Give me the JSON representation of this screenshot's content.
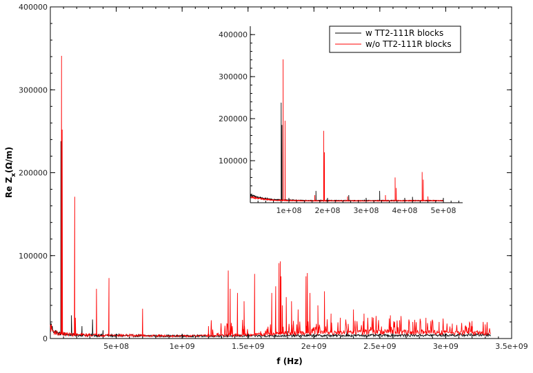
{
  "chart_data": [
    {
      "name": "main-plot",
      "type": "line",
      "xlabel": "f (Hz)",
      "ylabel_parts": [
        "Re Z",
        "x",
        "(Ω/m)"
      ],
      "xlim": [
        0,
        3500000000
      ],
      "ylim": [
        0,
        400000
      ],
      "x_ticks": [
        500000000,
        1000000000,
        1500000000,
        2000000000,
        2500000000,
        3000000000,
        3500000000
      ],
      "x_tick_labels": [
        "5e+08",
        "1e+09",
        "1.5e+09",
        "2e+09",
        "2.5e+09",
        "3e+09",
        "3.5e+09"
      ],
      "y_ticks": [
        0,
        100000,
        200000,
        300000,
        400000
      ],
      "y_tick_labels": [
        "0",
        "100000",
        "200000",
        "300000",
        "400000"
      ],
      "series": [
        {
          "name": "w TT2-111R blocks",
          "color": "#000000",
          "baseline": [
            [
              0,
              18000
            ],
            [
              20000000,
              10000
            ],
            [
              60000000,
              6000
            ],
            [
              200000000,
              4000
            ],
            [
              500000000,
              3500
            ],
            [
              1000000000,
              3000
            ],
            [
              2000000000,
              3500
            ],
            [
              3000000000,
              4000
            ],
            [
              3330000000,
              4500
            ]
          ],
          "peaks": [
            [
              80000000,
              238000
            ],
            [
              82000000,
              106000
            ],
            [
              160000000,
              28000
            ],
            [
              240000000,
              15000
            ],
            [
              320000000,
              23000
            ],
            [
              400000000,
              10000
            ],
            [
              520000000,
              6000
            ],
            [
              700000000,
              7000
            ],
            [
              1800000000,
              9000
            ],
            [
              2250000000,
              10000
            ],
            [
              2600000000,
              7000
            ]
          ]
        },
        {
          "name": "w/o TT2-111R blocks",
          "color": "#ff0000",
          "baseline": [
            [
              0,
              14000
            ],
            [
              20000000,
              9000
            ],
            [
              60000000,
              6000
            ],
            [
              200000000,
              4500
            ],
            [
              500000000,
              4000
            ],
            [
              1000000000,
              3000
            ],
            [
              1300000000,
              3500
            ],
            [
              1600000000,
              5000
            ],
            [
              2000000000,
              7000
            ],
            [
              2500000000,
              8000
            ],
            [
              3000000000,
              7000
            ],
            [
              3330000000,
              6000
            ]
          ],
          "peaks": [
            [
              85000000,
              341000
            ],
            [
              90000000,
              252000
            ],
            [
              185000000,
              171000
            ],
            [
              190000000,
              25000
            ],
            [
              350000000,
              60000
            ],
            [
              445000000,
              73000
            ],
            [
              700000000,
              36000
            ],
            [
              1200000000,
              15000
            ],
            [
              1350000000,
              82000
            ],
            [
              1365000000,
              60000
            ],
            [
              1420000000,
              55000
            ],
            [
              1470000000,
              45000
            ],
            [
              1550000000,
              78000
            ],
            [
              1680000000,
              55000
            ],
            [
              1710000000,
              63000
            ],
            [
              1735000000,
              91000
            ],
            [
              1745000000,
              93000
            ],
            [
              1750000000,
              75000
            ],
            [
              1760000000,
              40000
            ],
            [
              1790000000,
              50000
            ],
            [
              1830000000,
              45000
            ],
            [
              1880000000,
              35000
            ],
            [
              1940000000,
              75000
            ],
            [
              1950000000,
              79000
            ],
            [
              1970000000,
              55000
            ],
            [
              2030000000,
              40000
            ],
            [
              2080000000,
              57000
            ],
            [
              2130000000,
              30000
            ],
            [
              2200000000,
              25000
            ],
            [
              2300000000,
              35000
            ],
            [
              2380000000,
              30000
            ],
            [
              2450000000,
              25000
            ],
            [
              2580000000,
              28000
            ],
            [
              2650000000,
              22000
            ],
            [
              2750000000,
              20000
            ],
            [
              2850000000,
              25000
            ],
            [
              2950000000,
              20000
            ],
            [
              3050000000,
              18000
            ],
            [
              3200000000,
              15000
            ],
            [
              3300000000,
              17000
            ]
          ]
        }
      ]
    },
    {
      "name": "inset-plot",
      "type": "line",
      "xlim": [
        0,
        550000000
      ],
      "ylim": [
        0,
        420000
      ],
      "x_ticks": [
        100000000,
        200000000,
        300000000,
        400000000,
        500000000
      ],
      "x_tick_labels": [
        "1e+08",
        "2e+08",
        "3e+08",
        "4e+08",
        "5e+08"
      ],
      "y_ticks": [
        100000,
        200000,
        300000,
        400000
      ],
      "y_tick_labels": [
        "100000",
        "200000",
        "300000",
        "400000"
      ],
      "legend": {
        "placement": "top-right",
        "entries": [
          {
            "label": "w TT2-111R blocks",
            "color": "#000000"
          },
          {
            "label": "w/o TT2-111R blocks",
            "color": "#ff0000"
          }
        ]
      },
      "series": [
        {
          "name": "w TT2-111R blocks",
          "color": "#000000",
          "baseline": [
            [
              0,
              18000
            ],
            [
              20000000,
              12000
            ],
            [
              60000000,
              7000
            ],
            [
              150000000,
              5000
            ],
            [
              300000000,
              5000
            ],
            [
              550000000,
              5000
            ]
          ],
          "peaks": [
            [
              80000000,
              238000
            ],
            [
              82000000,
              185000
            ],
            [
              170000000,
              28000
            ],
            [
              255000000,
              18000
            ],
            [
              335000000,
              28000
            ],
            [
              420000000,
              14000
            ]
          ]
        },
        {
          "name": "w/o TT2-111R blocks",
          "color": "#ff0000",
          "baseline": [
            [
              0,
              14000
            ],
            [
              20000000,
              10000
            ],
            [
              60000000,
              6000
            ],
            [
              150000000,
              4500
            ],
            [
              300000000,
              4500
            ],
            [
              550000000,
              5000
            ]
          ],
          "peaks": [
            [
              85000000,
              341000
            ],
            [
              90000000,
              195000
            ],
            [
              167000000,
              18000
            ],
            [
              190000000,
              171000
            ],
            [
              192000000,
              120000
            ],
            [
              252000000,
              15000
            ],
            [
              350000000,
              18000
            ],
            [
              375000000,
              60000
            ],
            [
              378000000,
              35000
            ],
            [
              445000000,
              73000
            ],
            [
              448000000,
              55000
            ],
            [
              460000000,
              15000
            ]
          ]
        }
      ]
    }
  ]
}
